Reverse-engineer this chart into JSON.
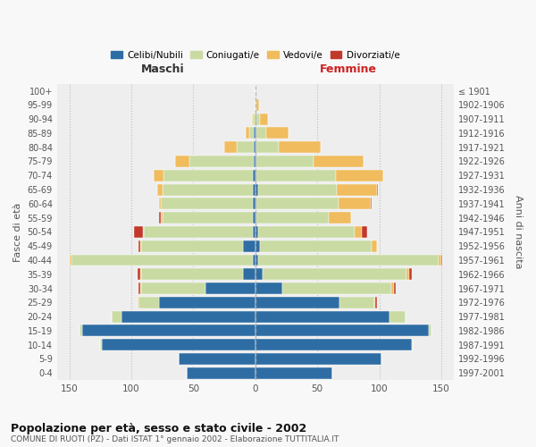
{
  "age_groups": [
    "0-4",
    "5-9",
    "10-14",
    "15-19",
    "20-24",
    "25-29",
    "30-34",
    "35-39",
    "40-44",
    "45-49",
    "50-54",
    "55-59",
    "60-64",
    "65-69",
    "70-74",
    "75-79",
    "80-84",
    "85-89",
    "90-94",
    "95-99",
    "100+"
  ],
  "birth_years": [
    "1997-2001",
    "1992-1996",
    "1987-1991",
    "1982-1986",
    "1977-1981",
    "1972-1976",
    "1967-1971",
    "1962-1966",
    "1957-1961",
    "1952-1956",
    "1947-1951",
    "1942-1946",
    "1937-1941",
    "1932-1936",
    "1927-1931",
    "1922-1926",
    "1917-1921",
    "1912-1916",
    "1907-1911",
    "1902-1906",
    "≤ 1901"
  ],
  "male_single": [
    55,
    62,
    124,
    140,
    108,
    78,
    40,
    10,
    2,
    10,
    2,
    2,
    2,
    2,
    2,
    1,
    1,
    1,
    0,
    0,
    0
  ],
  "male_married": [
    0,
    0,
    1,
    2,
    8,
    16,
    52,
    82,
    146,
    82,
    88,
    73,
    74,
    73,
    72,
    52,
    14,
    4,
    2,
    0,
    0
  ],
  "male_widowed": [
    0,
    0,
    0,
    0,
    0,
    1,
    1,
    1,
    2,
    1,
    1,
    1,
    2,
    4,
    8,
    12,
    10,
    3,
    1,
    0,
    0
  ],
  "male_divorced": [
    0,
    0,
    0,
    0,
    0,
    0,
    1,
    2,
    0,
    1,
    7,
    2,
    0,
    0,
    0,
    0,
    0,
    0,
    0,
    0,
    0
  ],
  "female_single": [
    62,
    102,
    126,
    140,
    108,
    68,
    22,
    6,
    2,
    4,
    2,
    1,
    1,
    2,
    1,
    1,
    1,
    1,
    1,
    0,
    0
  ],
  "female_married": [
    0,
    0,
    1,
    2,
    13,
    28,
    88,
    116,
    146,
    90,
    78,
    58,
    66,
    64,
    64,
    46,
    18,
    8,
    3,
    1,
    0
  ],
  "female_widowed": [
    0,
    0,
    0,
    0,
    0,
    1,
    2,
    2,
    2,
    4,
    6,
    18,
    26,
    32,
    38,
    40,
    34,
    18,
    6,
    2,
    0
  ],
  "female_divorced": [
    0,
    0,
    0,
    0,
    0,
    1,
    1,
    2,
    1,
    0,
    4,
    0,
    1,
    1,
    0,
    0,
    0,
    0,
    0,
    0,
    0
  ],
  "color_single": "#2e6da4",
  "color_married": "#c9dba3",
  "color_widowed": "#f0bc5e",
  "color_divorced": "#c0392b",
  "legend_labels": [
    "Celibi/Nubili",
    "Coniugati/e",
    "Vedovi/e",
    "Divorziati/e"
  ],
  "title_main": "Popolazione per età, sesso e stato civile - 2002",
  "title_sub": "COMUNE DI RUOTI (PZ) - Dati ISTAT 1° gennaio 2002 - Elaborazione TUTTITALIA.IT",
  "label_maschi": "Maschi",
  "label_femmine": "Femmine",
  "label_fasce": "Fasce di età",
  "label_anni": "Anni di nascita",
  "xlim": 160,
  "bg_color": "#f8f8f8",
  "plot_bg": "#eeeeee"
}
